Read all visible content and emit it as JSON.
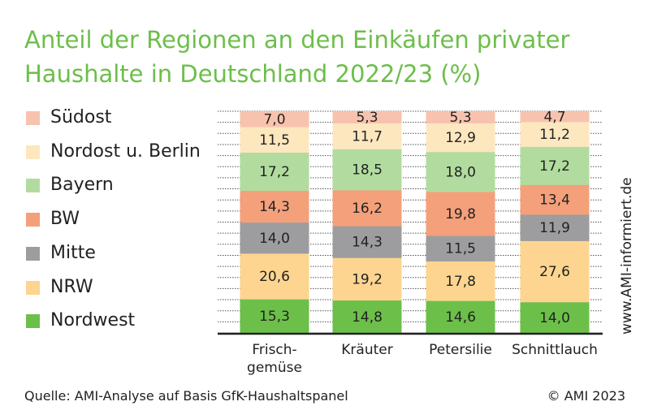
{
  "chart_data": {
    "type": "bar",
    "stacked": true,
    "title": "Anteil der Regionen an den Einkäufen privater Haushalte in Deutschland 2022/23 (%)",
    "xlabel": "",
    "ylabel": "",
    "ylim": [
      0,
      100
    ],
    "grid": true,
    "legend_placement": "left",
    "categories": [
      "Frisch-\ngemüse",
      "Kräuter",
      "Petersilie",
      "Schnittlauch"
    ],
    "series": [
      {
        "name": "Nordwest",
        "color": "#6cc04a",
        "values": [
          15.3,
          14.8,
          14.6,
          14.0
        ]
      },
      {
        "name": "NRW",
        "color": "#fdd590",
        "values": [
          20.6,
          19.2,
          17.8,
          27.6
        ]
      },
      {
        "name": "Mitte",
        "color": "#9d9d9f",
        "values": [
          14.0,
          14.3,
          11.5,
          11.9
        ]
      },
      {
        "name": "BW",
        "color": "#f4a07a",
        "values": [
          14.3,
          16.2,
          19.8,
          13.4
        ]
      },
      {
        "name": "Bayern",
        "color": "#b2dc9f",
        "values": [
          17.2,
          18.5,
          18.0,
          17.2
        ]
      },
      {
        "name": "Nordost u. Berlin",
        "color": "#fde7bf",
        "values": [
          11.5,
          11.7,
          12.9,
          11.2
        ]
      },
      {
        "name": "Südost",
        "color": "#f8c3ae",
        "values": [
          7.0,
          5.3,
          5.3,
          4.7
        ]
      }
    ]
  },
  "legend_order": [
    "Südost",
    "Nordost u. Berlin",
    "Bayern",
    "BW",
    "Mitte",
    "NRW",
    "Nordwest"
  ],
  "watermark": "www.AMI-informiert.de",
  "source": "Quelle: AMI-Analyse auf Basis GfK-Haushaltspanel",
  "copyright": "© AMI 2023"
}
